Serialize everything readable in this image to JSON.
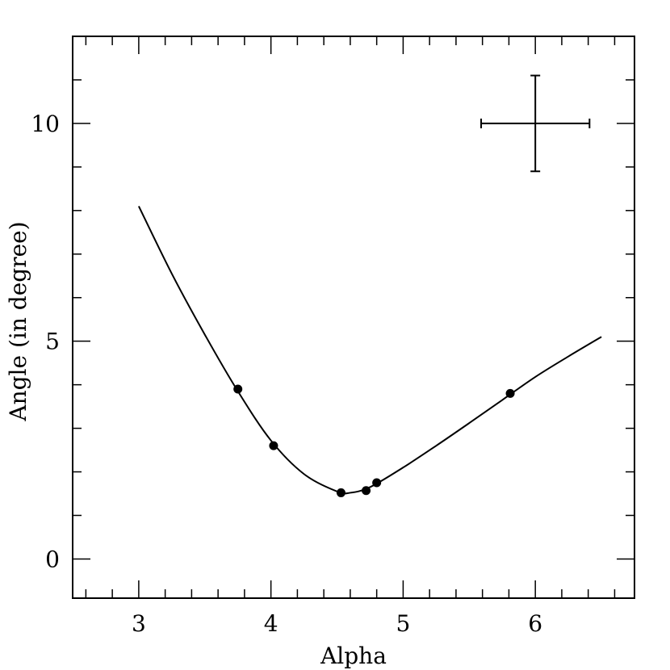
{
  "chart_data": {
    "type": "scatter",
    "xlabel": "Alpha",
    "ylabel": "Angle (in degree)",
    "xlim": [
      2.5,
      6.75
    ],
    "ylim": [
      -0.9,
      12
    ],
    "x_ticks": [
      "3",
      "4",
      "5",
      "6"
    ],
    "y_ticks": [
      "0",
      "5",
      "10"
    ],
    "points": [
      {
        "x": 3.75,
        "y": 3.9
      },
      {
        "x": 4.02,
        "y": 2.6
      },
      {
        "x": 4.53,
        "y": 1.52
      },
      {
        "x": 4.72,
        "y": 1.57
      },
      {
        "x": 4.8,
        "y": 1.75
      },
      {
        "x": 5.81,
        "y": 3.8
      }
    ],
    "fit_curve": {
      "x": [
        3.0,
        3.25,
        3.5,
        3.75,
        4.0,
        4.25,
        4.5,
        4.6,
        4.75,
        5.0,
        5.25,
        5.5,
        5.75,
        6.0,
        6.25,
        6.5
      ],
      "y": [
        8.1,
        6.55,
        5.15,
        3.85,
        2.72,
        1.95,
        1.55,
        1.52,
        1.65,
        2.1,
        2.6,
        3.12,
        3.65,
        4.18,
        4.65,
        5.1
      ]
    },
    "error_bar_example": {
      "x": 6.0,
      "y": 10.0,
      "x_err": 0.41,
      "y_err": 1.1
    },
    "grid": false,
    "legend": "none"
  }
}
